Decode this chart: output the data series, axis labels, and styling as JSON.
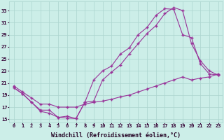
{
  "background_color": "#cceee8",
  "grid_color": "#aad4ce",
  "line_color": "#993399",
  "marker": "+",
  "markersize": 3.5,
  "markeredgewidth": 1.0,
  "linewidth": 0.8,
  "xlabel": "Windchill (Refroidissement éolien,°C)",
  "xlabel_fontsize": 6,
  "tick_fontsize": 5,
  "line1_x": [
    0,
    1,
    2,
    3,
    4,
    5,
    6,
    7,
    8,
    9,
    10,
    11,
    12,
    13,
    14,
    15,
    16,
    17,
    18,
    19,
    20,
    21,
    22,
    23
  ],
  "line1_y": [
    20.2,
    19.2,
    17.8,
    16.3,
    16.0,
    15.3,
    15.2,
    15.1,
    17.8,
    18.0,
    21.5,
    22.8,
    24.0,
    25.8,
    27.5,
    29.2,
    30.5,
    32.5,
    33.5,
    33.0,
    27.5,
    24.7,
    23.0,
    22.3
  ],
  "line2_x": [
    0,
    1,
    2,
    3,
    4,
    5,
    6,
    7,
    8,
    9,
    10,
    11,
    12,
    13,
    14,
    15,
    16,
    17,
    18,
    19,
    20,
    21,
    22,
    23
  ],
  "line2_y": [
    20.2,
    19.2,
    17.8,
    16.5,
    16.5,
    15.3,
    15.5,
    15.1,
    17.8,
    21.5,
    23.0,
    23.8,
    25.8,
    26.8,
    29.0,
    30.2,
    32.2,
    33.3,
    33.2,
    29.0,
    28.5,
    24.2,
    22.5,
    22.3
  ],
  "line3_x": [
    0,
    1,
    2,
    3,
    4,
    5,
    6,
    7,
    8,
    9,
    10,
    11,
    12,
    13,
    14,
    15,
    16,
    17,
    18,
    19,
    20,
    21,
    22,
    23
  ],
  "line3_y": [
    20.5,
    19.5,
    18.5,
    17.5,
    17.5,
    17.0,
    17.0,
    17.0,
    17.5,
    17.8,
    18.0,
    18.3,
    18.7,
    19.0,
    19.5,
    20.0,
    20.5,
    21.0,
    21.5,
    22.0,
    21.5,
    21.8,
    22.0,
    22.5
  ],
  "xlim": [
    -0.5,
    23.5
  ],
  "ylim": [
    14.5,
    34.5
  ],
  "yticks": [
    15,
    17,
    19,
    21,
    23,
    25,
    27,
    29,
    31,
    33
  ]
}
